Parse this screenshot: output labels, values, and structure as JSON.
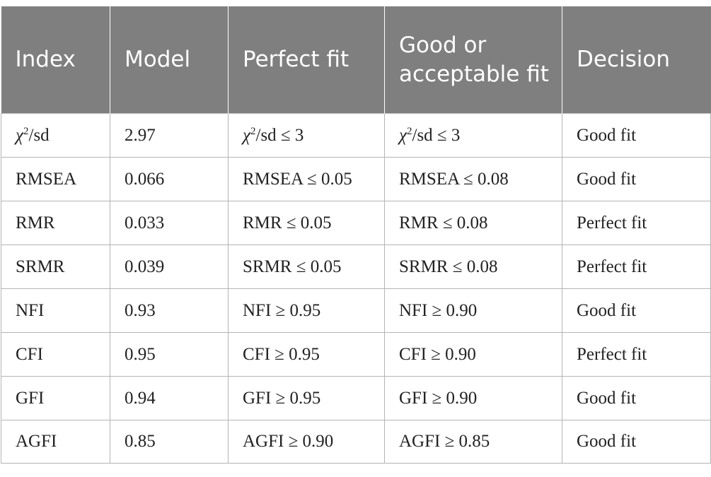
{
  "table": {
    "headers": [
      "Index",
      "Model",
      "Perfect fit",
      "Good or acceptable fit",
      "Decision"
    ],
    "chi_row": {
      "index": {
        "symbol": "χ",
        "sup": "2",
        "rest": "/sd"
      },
      "model": "2.97",
      "perfect": {
        "symbol": "χ",
        "sup": "2",
        "rest": "/sd ≤ 3"
      },
      "good": {
        "symbol": "χ",
        "sup": "2",
        "rest": "/sd ≤ 3"
      },
      "decision": "Good fit"
    },
    "rows": [
      {
        "index": "RMSEA",
        "model": "0.066",
        "perfect": "RMSEA ≤ 0.05",
        "good": "RMSEA ≤ 0.08",
        "decision": "Good fit"
      },
      {
        "index": "RMR",
        "model": "0.033",
        "perfect": "RMR ≤ 0.05",
        "good": "RMR ≤ 0.08",
        "decision": "Perfect fit"
      },
      {
        "index": "SRMR",
        "model": "0.039",
        "perfect": "SRMR ≤ 0.05",
        "good": "SRMR ≤ 0.08",
        "decision": "Perfect fit"
      },
      {
        "index": "NFI",
        "model": "0.93",
        "perfect": "NFI ≥ 0.95",
        "good": "NFI ≥ 0.90",
        "decision": "Good fit"
      },
      {
        "index": "CFI",
        "model": "0.95",
        "perfect": "CFI ≥ 0.95",
        "good": "CFI ≥ 0.90",
        "decision": "Perfect fit"
      },
      {
        "index": "GFI",
        "model": "0.94",
        "perfect": "GFI ≥ 0.95",
        "good": "GFI ≥ 0.90",
        "decision": "Good fit"
      },
      {
        "index": "AGFI",
        "model": "0.85",
        "perfect": "AGFI ≥ 0.90",
        "good": "AGFI ≥ 0.85",
        "decision": "Good fit"
      }
    ]
  }
}
